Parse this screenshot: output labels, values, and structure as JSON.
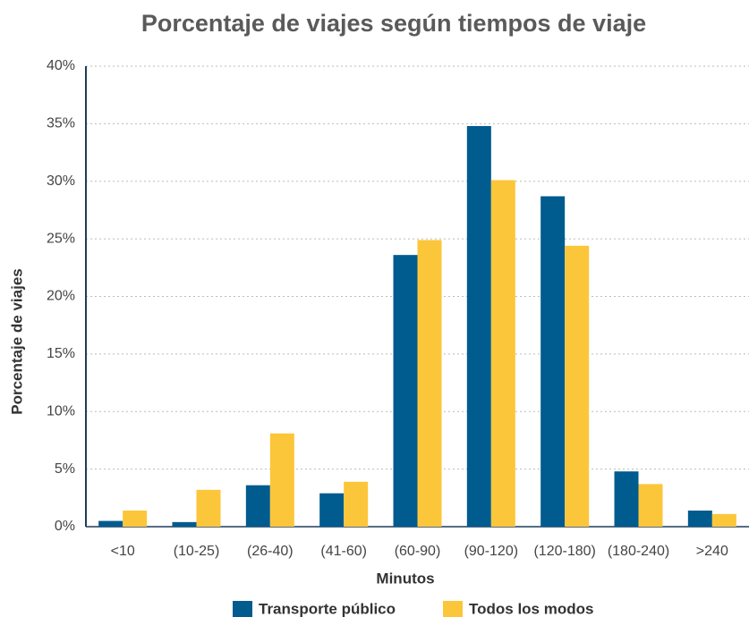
{
  "chart_data": {
    "type": "bar",
    "title": "Porcentaje de viajes según tiempos de viaje",
    "x_label": "Minutos",
    "y_label": "Porcentaje de viajes",
    "categories": [
      "<10",
      "(10-25)",
      "(26-40)",
      "(41-60)",
      "(60-90)",
      "(90-120)",
      "(120-180)",
      "(180-240)",
      ">240"
    ],
    "series": [
      {
        "name": "Transporte público",
        "color": "#005b8f",
        "values": [
          0.5,
          0.4,
          3.6,
          2.9,
          23.6,
          34.8,
          28.7,
          4.8,
          1.4
        ]
      },
      {
        "name": "Todos los modos",
        "color": "#fcc63a",
        "values": [
          1.4,
          3.2,
          8.1,
          3.9,
          24.9,
          30.1,
          24.4,
          3.7,
          1.1
        ]
      }
    ],
    "ylim": [
      0,
      40
    ],
    "yticks": [
      {
        "value": 0,
        "label": "0%"
      },
      {
        "value": 5,
        "label": "5%"
      },
      {
        "value": 10,
        "label": "10%"
      },
      {
        "value": 15,
        "label": "15%"
      },
      {
        "value": 20,
        "label": "20%"
      },
      {
        "value": 25,
        "label": "25%"
      },
      {
        "value": 30,
        "label": "30%"
      },
      {
        "value": 35,
        "label": "35%"
      },
      {
        "value": 40,
        "label": "40%"
      }
    ],
    "grid": true,
    "legend": "bottom"
  }
}
